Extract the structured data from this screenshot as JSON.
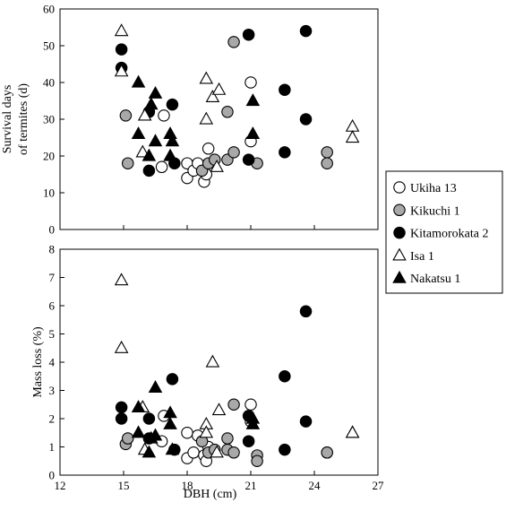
{
  "chart_data": [
    {
      "type": "scatter",
      "panel": "top",
      "ylabel_line1": "Survival days",
      "ylabel_line2": "of termites (d)",
      "ylim": [
        0,
        60
      ],
      "yticks": [
        0,
        10,
        20,
        30,
        40,
        50,
        60
      ],
      "series": [
        {
          "name": "Ukiha 13",
          "marker": "open-circle",
          "points": [
            [
              16.8,
              17
            ],
            [
              16.9,
              31
            ],
            [
              18.0,
              14
            ],
            [
              18.0,
              18
            ],
            [
              18.3,
              16
            ],
            [
              18.5,
              18
            ],
            [
              18.8,
              13
            ],
            [
              18.9,
              15
            ],
            [
              19.0,
              22
            ],
            [
              21.0,
              24
            ],
            [
              21.0,
              40
            ]
          ]
        },
        {
          "name": "Kikuchi 1",
          "marker": "grey-circle",
          "points": [
            [
              15.1,
              31
            ],
            [
              15.2,
              18
            ],
            [
              18.7,
              16
            ],
            [
              19.0,
              18
            ],
            [
              19.3,
              19
            ],
            [
              19.9,
              32
            ],
            [
              19.9,
              19
            ],
            [
              20.2,
              51
            ],
            [
              20.2,
              21
            ],
            [
              21.3,
              18
            ],
            [
              24.6,
              21
            ],
            [
              24.6,
              18
            ]
          ]
        },
        {
          "name": "Kitamorokata 2",
          "marker": "filled-circle",
          "points": [
            [
              14.9,
              44
            ],
            [
              14.9,
              49
            ],
            [
              16.2,
              32
            ],
            [
              16.2,
              16
            ],
            [
              17.3,
              34
            ],
            [
              17.4,
              18
            ],
            [
              20.9,
              53
            ],
            [
              20.9,
              19
            ],
            [
              22.6,
              38
            ],
            [
              22.6,
              21
            ],
            [
              23.6,
              54
            ],
            [
              23.6,
              30
            ]
          ]
        },
        {
          "name": "Isa 1",
          "marker": "open-triangle",
          "points": [
            [
              14.9,
              43
            ],
            [
              14.9,
              54
            ],
            [
              15.9,
              21
            ],
            [
              16.0,
              31
            ],
            [
              18.9,
              41
            ],
            [
              18.9,
              30
            ],
            [
              19.2,
              36
            ],
            [
              19.4,
              17
            ],
            [
              19.5,
              38
            ],
            [
              25.8,
              28
            ],
            [
              25.8,
              25
            ]
          ]
        },
        {
          "name": "Nakatsu 1",
          "marker": "filled-triangle",
          "points": [
            [
              15.7,
              40
            ],
            [
              15.7,
              26
            ],
            [
              16.2,
              20
            ],
            [
              16.3,
              34
            ],
            [
              16.5,
              24
            ],
            [
              16.5,
              37
            ],
            [
              17.2,
              26
            ],
            [
              17.2,
              20
            ],
            [
              17.3,
              24
            ],
            [
              21.1,
              26
            ],
            [
              21.1,
              35
            ]
          ]
        }
      ]
    },
    {
      "type": "scatter",
      "panel": "bottom",
      "xlabel": "DBH (cm)",
      "ylabel": "Mass loss (%)",
      "xlim": [
        12,
        27
      ],
      "xticks": [
        12,
        15,
        18,
        21,
        24,
        27
      ],
      "ylim": [
        0,
        8
      ],
      "yticks": [
        0,
        1,
        2,
        3,
        4,
        5,
        6,
        7,
        8
      ],
      "series": [
        {
          "name": "Ukiha 13",
          "marker": "open-circle",
          "points": [
            [
              16.8,
              1.2
            ],
            [
              16.9,
              2.1
            ],
            [
              18.0,
              1.5
            ],
            [
              18.0,
              0.6
            ],
            [
              18.3,
              0.8
            ],
            [
              18.5,
              1.4
            ],
            [
              18.8,
              0.7
            ],
            [
              18.9,
              0.5
            ],
            [
              19.0,
              1.0
            ],
            [
              21.0,
              1.9
            ],
            [
              21.0,
              2.5
            ]
          ]
        },
        {
          "name": "Kikuchi 1",
          "marker": "grey-circle",
          "points": [
            [
              15.1,
              1.1
            ],
            [
              15.2,
              1.3
            ],
            [
              18.7,
              1.2
            ],
            [
              19.0,
              0.8
            ],
            [
              19.3,
              0.9
            ],
            [
              19.9,
              1.3
            ],
            [
              19.9,
              0.9
            ],
            [
              20.2,
              2.5
            ],
            [
              20.2,
              0.8
            ],
            [
              21.3,
              0.7
            ],
            [
              21.3,
              0.5
            ],
            [
              24.6,
              0.8
            ],
            [
              24.6,
              0.8
            ]
          ]
        },
        {
          "name": "Kitamorokata 2",
          "marker": "filled-circle",
          "points": [
            [
              14.9,
              2.4
            ],
            [
              14.9,
              2.0
            ],
            [
              16.2,
              2.0
            ],
            [
              16.2,
              1.3
            ],
            [
              17.3,
              3.4
            ],
            [
              17.4,
              0.9
            ],
            [
              20.9,
              2.1
            ],
            [
              20.9,
              1.2
            ],
            [
              22.6,
              3.5
            ],
            [
              22.6,
              0.9
            ],
            [
              23.6,
              5.8
            ],
            [
              23.6,
              1.9
            ]
          ]
        },
        {
          "name": "Isa 1",
          "marker": "open-triangle",
          "points": [
            [
              14.9,
              6.9
            ],
            [
              14.9,
              4.5
            ],
            [
              15.9,
              2.4
            ],
            [
              16.0,
              0.9
            ],
            [
              18.9,
              1.8
            ],
            [
              18.9,
              1.5
            ],
            [
              19.2,
              4.0
            ],
            [
              19.4,
              0.8
            ],
            [
              19.5,
              2.3
            ],
            [
              25.8,
              1.5
            ],
            [
              25.8,
              1.5
            ]
          ]
        },
        {
          "name": "Nakatsu 1",
          "marker": "filled-triangle",
          "points": [
            [
              15.7,
              2.4
            ],
            [
              15.7,
              1.5
            ],
            [
              16.2,
              0.8
            ],
            [
              16.3,
              1.3
            ],
            [
              16.5,
              3.1
            ],
            [
              16.5,
              1.4
            ],
            [
              17.2,
              2.2
            ],
            [
              17.2,
              1.8
            ],
            [
              17.3,
              0.9
            ],
            [
              21.1,
              2.0
            ],
            [
              21.1,
              1.8
            ]
          ]
        }
      ]
    }
  ],
  "legend": {
    "placement": "right",
    "entries": [
      {
        "label": "Ukiha 13",
        "marker": "open-circle"
      },
      {
        "label": "Kikuchi 1",
        "marker": "grey-circle"
      },
      {
        "label": "Kitamorokata 2",
        "marker": "filled-circle"
      },
      {
        "label": "Isa 1",
        "marker": "open-triangle"
      },
      {
        "label": "Nakatsu 1",
        "marker": "filled-triangle"
      }
    ]
  },
  "colors": {
    "grey_fill": "#a8a8a8",
    "black": "#000000",
    "white": "#ffffff"
  }
}
